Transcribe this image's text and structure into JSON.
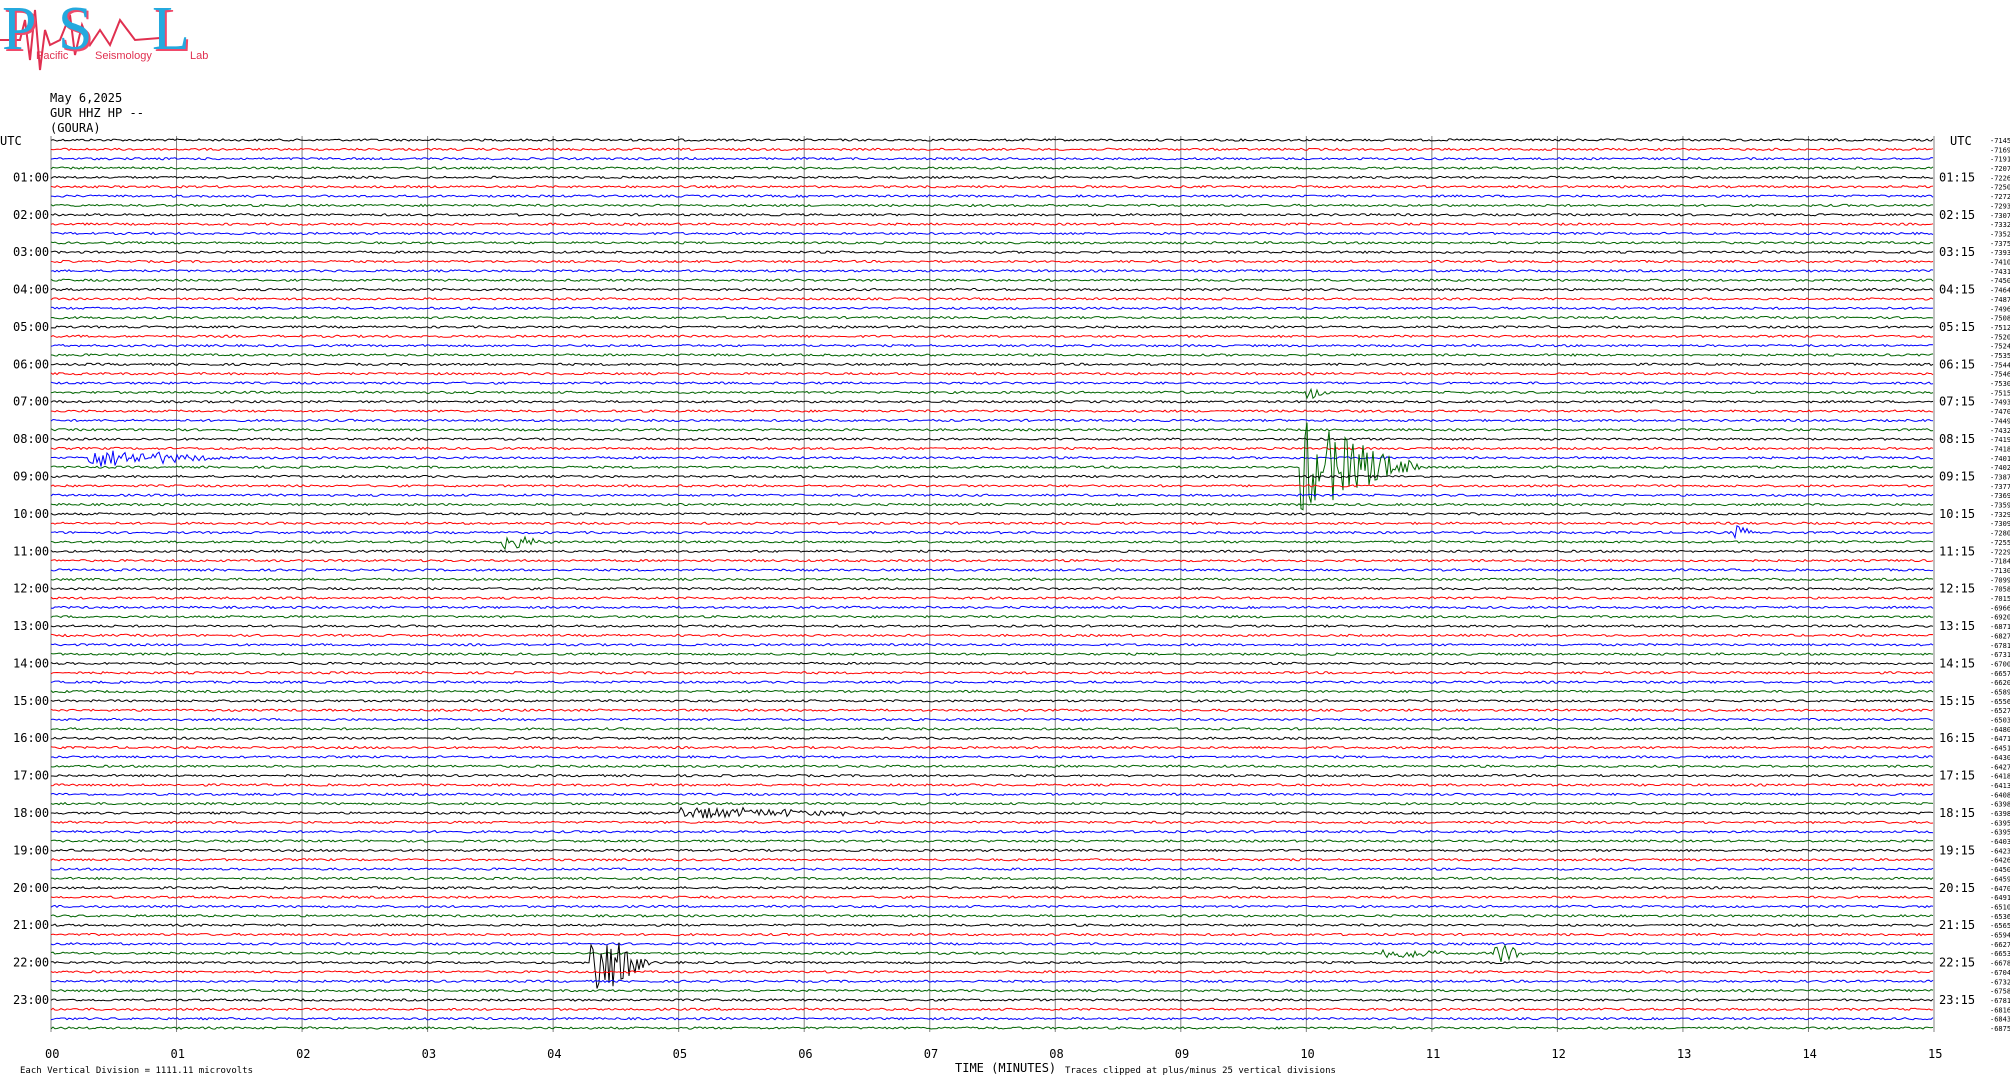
{
  "header": {
    "logo_letters": [
      "P",
      "S",
      "L"
    ],
    "logo_words": [
      "Pacific",
      "Seismology",
      "Lab"
    ],
    "date": "May 6,2025",
    "channel": "GUR HHZ HP --",
    "station": "(GOURA)",
    "utc_left": "UTC",
    "utc_right": "UTC"
  },
  "colors": {
    "trace_cycle": [
      "#000000",
      "#ff0000",
      "#0000ff",
      "#006400"
    ],
    "grid": "#808080"
  },
  "chart_data": {
    "type": "line",
    "title": "",
    "xlabel": "TIME (MINUTES)",
    "ylabel": "",
    "x_ticks": [
      "00",
      "01",
      "02",
      "03",
      "04",
      "05",
      "06",
      "07",
      "08",
      "09",
      "10",
      "11",
      "12",
      "13",
      "14",
      "15"
    ],
    "xlim": [
      0,
      15
    ],
    "left_hour_labels": [
      "01:00",
      "02:00",
      "03:00",
      "04:00",
      "05:00",
      "06:00",
      "07:00",
      "08:00",
      "09:00",
      "10:00",
      "11:00",
      "12:00",
      "13:00",
      "14:00",
      "15:00",
      "16:00",
      "17:00",
      "18:00",
      "19:00",
      "20:00",
      "21:00",
      "22:00",
      "23:00"
    ],
    "right_hour_labels": [
      "01:15",
      "02:15",
      "03:15",
      "04:15",
      "05:15",
      "06:15",
      "07:15",
      "08:15",
      "09:15",
      "10:15",
      "11:15",
      "12:15",
      "13:15",
      "14:15",
      "15:15",
      "16:15",
      "17:15",
      "18:15",
      "19:15",
      "20:15",
      "21:15",
      "22:15",
      "23:15"
    ],
    "trace_offsets": [
      -7145,
      -7169,
      -7191,
      -7207,
      -7226,
      -7250,
      -7272,
      -7293,
      -7307,
      -7332,
      -7352,
      -7375,
      -7393,
      -7410,
      -7431,
      -7450,
      -7464,
      -7487,
      -7496,
      -7508,
      -7512,
      -7520,
      -7524,
      -7535,
      -7544,
      -7546,
      -7530,
      -7515,
      -7493,
      -7470,
      -7449,
      -7432,
      -7419,
      -7418,
      -7401,
      -7402,
      -7387,
      -7377,
      -7369,
      -7359,
      -7329,
      -7309,
      -7280,
      -7255,
      -7229,
      -7184,
      -7130,
      -7099,
      -7058,
      -7015,
      -6966,
      -6920,
      -6871,
      -6827,
      -6781,
      -6731,
      -6700,
      -6657,
      -6620,
      -6589,
      -6556,
      -6527,
      -6503,
      -6480,
      -6471,
      -6451,
      -6430,
      -6427,
      -6418,
      -6413,
      -6408,
      -6398,
      -6398,
      -6395,
      -6395,
      -6403,
      -6423,
      -6426,
      -6450,
      -6459,
      -6470,
      -6491,
      -6510,
      -6536,
      -6565,
      -6594,
      -6627,
      -6653,
      -6678,
      -6704,
      -6732,
      -6758,
      -6781,
      -6816,
      -6843,
      -6875
    ],
    "events": [
      {
        "trace": 34,
        "t": 0.3,
        "dur": 1.2,
        "amp": 10
      },
      {
        "trace": 35,
        "t": 9.95,
        "dur": 1.0,
        "amp": 48
      },
      {
        "trace": 43,
        "t": 3.6,
        "dur": 0.4,
        "amp": 9
      },
      {
        "trace": 88,
        "t": 4.3,
        "dur": 0.5,
        "amp": 40
      },
      {
        "trace": 72,
        "t": 5.0,
        "dur": 2.0,
        "amp": 6
      },
      {
        "trace": 42,
        "t": 13.4,
        "dur": 0.2,
        "amp": 10
      },
      {
        "trace": 87,
        "t": 10.6,
        "dur": 0.6,
        "amp": 8
      },
      {
        "trace": 87,
        "t": 11.5,
        "dur": 0.3,
        "amp": 12
      },
      {
        "trace": 27,
        "t": 10.0,
        "dur": 0.2,
        "amp": 8
      }
    ],
    "grid": true
  },
  "footer": {
    "division_note": "Each Vertical Division = 1111.11 microvolts",
    "clip_note": "Traces clipped at plus/minus 25 vertical divisions"
  }
}
